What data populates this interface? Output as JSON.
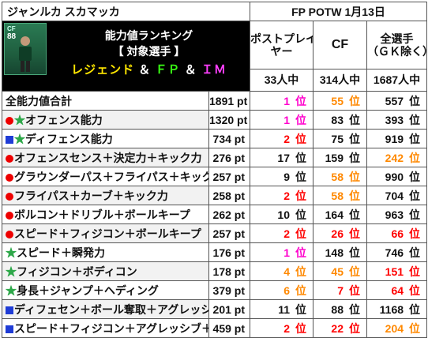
{
  "header": {
    "player_name": "ジャンルカ スカマッカ",
    "card_label": "FP POTW 1月13日",
    "card_position": "CF",
    "card_rating": "88",
    "title_line1": "能力値ランキング",
    "title_line2": "【 対象選手 】",
    "title_legend": "レジェンド",
    "title_amp": "＆",
    "title_fp": "ＦＰ",
    "title_im": "ＩＭ"
  },
  "columns": [
    {
      "label": "ポストプレイ\nヤー",
      "count": "33人中"
    },
    {
      "label": "CF",
      "count": "314人中"
    },
    {
      "label": "全選手\n（ＧＫ除く）",
      "count": "1687人中"
    }
  ],
  "colors": {
    "pink": "#ff00cc",
    "red": "#ff0000",
    "orange": "#ff8800",
    "marker_red": "#e00000",
    "marker_blue": "#1f3cd6",
    "marker_star": "#2ea84a"
  },
  "rows": [
    {
      "marker": "none",
      "label": "全能力値合計",
      "value": "1891 pt",
      "ranks": [
        {
          "num": "1",
          "suffix": "位",
          "color": "pink"
        },
        {
          "num": "55",
          "suffix": "位",
          "color": "orange"
        },
        {
          "num": "557",
          "suffix": "位",
          "color": "black"
        }
      ]
    },
    {
      "marker": "red-star",
      "label": "オフェンス能力",
      "value": "1320 pt",
      "ranks": [
        {
          "num": "1",
          "suffix": "位",
          "color": "pink"
        },
        {
          "num": "83",
          "suffix": "位",
          "color": "black"
        },
        {
          "num": "393",
          "suffix": "位",
          "color": "black"
        }
      ]
    },
    {
      "marker": "blue-star",
      "label": "ディフェンス能力",
      "value": "734 pt",
      "ranks": [
        {
          "num": "2",
          "suffix": "位",
          "color": "red"
        },
        {
          "num": "75",
          "suffix": "位",
          "color": "black"
        },
        {
          "num": "919",
          "suffix": "位",
          "color": "black"
        }
      ]
    },
    {
      "marker": "red",
      "label": "オフェンスセンス＋決定力＋キック力",
      "value": "276 pt",
      "ranks": [
        {
          "num": "17",
          "suffix": "位",
          "color": "black"
        },
        {
          "num": "159",
          "suffix": "位",
          "color": "black"
        },
        {
          "num": "242",
          "suffix": "位",
          "color": "orange"
        }
      ]
    },
    {
      "marker": "red",
      "label": "グラウンダーパス＋フライパス＋キック力",
      "value": "257 pt",
      "ranks": [
        {
          "num": "9",
          "suffix": "位",
          "color": "black"
        },
        {
          "num": "58",
          "suffix": "位",
          "color": "orange"
        },
        {
          "num": "990",
          "suffix": "位",
          "color": "black"
        }
      ]
    },
    {
      "marker": "red",
      "label": "フライパス＋カーブ＋キック力",
      "value": "258 pt",
      "ranks": [
        {
          "num": "2",
          "suffix": "位",
          "color": "red"
        },
        {
          "num": "58",
          "suffix": "位",
          "color": "orange"
        },
        {
          "num": "704",
          "suffix": "位",
          "color": "black"
        }
      ]
    },
    {
      "marker": "red",
      "label": "ボルコン＋ドリブル＋ボールキープ",
      "value": "262 pt",
      "ranks": [
        {
          "num": "10",
          "suffix": "位",
          "color": "black"
        },
        {
          "num": "164",
          "suffix": "位",
          "color": "black"
        },
        {
          "num": "963",
          "suffix": "位",
          "color": "black"
        }
      ]
    },
    {
      "marker": "red",
      "label": "スピード＋フィジコン＋ボールキープ",
      "value": "257 pt",
      "ranks": [
        {
          "num": "2",
          "suffix": "位",
          "color": "red"
        },
        {
          "num": "26",
          "suffix": "位",
          "color": "red"
        },
        {
          "num": "66",
          "suffix": "位",
          "color": "red"
        }
      ]
    },
    {
      "marker": "star",
      "label": "スピード＋瞬発力",
      "value": "176 pt",
      "ranks": [
        {
          "num": "1",
          "suffix": "位",
          "color": "pink"
        },
        {
          "num": "148",
          "suffix": "位",
          "color": "black"
        },
        {
          "num": "746",
          "suffix": "位",
          "color": "black"
        }
      ]
    },
    {
      "marker": "star",
      "label": "フィジコン＋ボディコン",
      "value": "178 pt",
      "ranks": [
        {
          "num": "4",
          "suffix": "位",
          "color": "orange"
        },
        {
          "num": "45",
          "suffix": "位",
          "color": "orange"
        },
        {
          "num": "151",
          "suffix": "位",
          "color": "red"
        }
      ]
    },
    {
      "marker": "star",
      "label": "身長＋ジャンプ＋ヘディング",
      "value": "379 pt",
      "ranks": [
        {
          "num": "6",
          "suffix": "位",
          "color": "orange"
        },
        {
          "num": "7",
          "suffix": "位",
          "color": "red"
        },
        {
          "num": "64",
          "suffix": "位",
          "color": "red"
        }
      ]
    },
    {
      "marker": "blue",
      "label": "ディフェセン＋ボール奪取＋アグレッシブ",
      "value": "201 pt",
      "ranks": [
        {
          "num": "11",
          "suffix": "位",
          "color": "black"
        },
        {
          "num": "88",
          "suffix": "位",
          "color": "black"
        },
        {
          "num": "1168",
          "suffix": "位",
          "color": "black"
        }
      ]
    },
    {
      "marker": "blue",
      "label": "スピード＋フィジコン＋アグレッシブ＋身長",
      "value": "459 pt",
      "ranks": [
        {
          "num": "2",
          "suffix": "位",
          "color": "red"
        },
        {
          "num": "22",
          "suffix": "位",
          "color": "red"
        },
        {
          "num": "204",
          "suffix": "位",
          "color": "orange"
        }
      ]
    }
  ]
}
